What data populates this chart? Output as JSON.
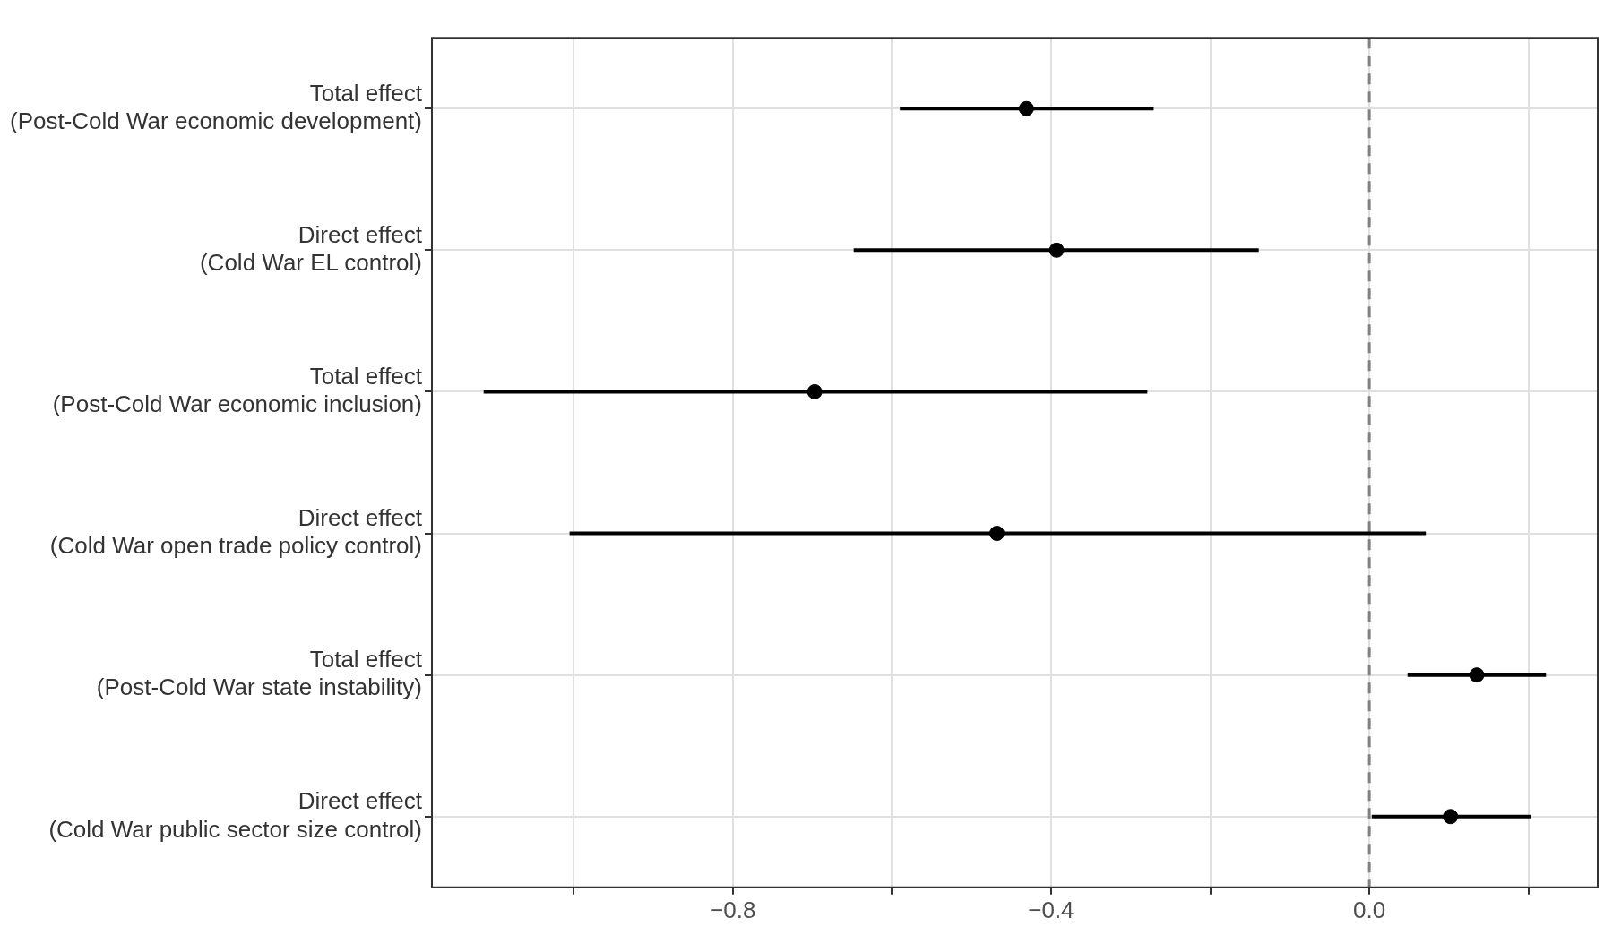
{
  "chart_data": {
    "type": "scatter",
    "orientation": "horizontal",
    "categories": [
      "Total effect\n(Post-Cold War economic development)",
      "Direct effect\n(Cold War EL control)",
      "Total effect\n(Post-Cold War economic inclusion)",
      "Direct effect\n(Cold War open trade policy control)",
      "Total effect\n(Post-Cold War state instability)",
      "Direct effect\n(Cold War public sector size control)"
    ],
    "values": [
      -0.431,
      -0.393,
      -0.697,
      -0.468,
      0.135,
      0.102
    ],
    "errors": [
      [
        -0.59,
        -0.271
      ],
      [
        -0.648,
        -0.139
      ],
      [
        -1.113,
        -0.279
      ],
      [
        -1.005,
        0.071
      ],
      [
        0.048,
        0.222
      ],
      [
        0.003,
        0.203
      ]
    ],
    "color": "#000000",
    "marker": "circle",
    "xlim": [
      -1.178,
      0.287
    ],
    "xticks": [
      {
        "value": -1.0,
        "label": null
      },
      {
        "value": -0.8,
        "label": "−0.8"
      },
      {
        "value": -0.6,
        "label": null
      },
      {
        "value": -0.4,
        "label": "−0.4"
      },
      {
        "value": -0.2,
        "label": null
      },
      {
        "value": 0,
        "label": "0.0"
      },
      {
        "value": 0.2,
        "label": null
      }
    ],
    "grid": true,
    "ref_lines": [
      {
        "axis": "x",
        "value": 0,
        "color": "#808080",
        "line_style": "dashed"
      }
    ]
  }
}
